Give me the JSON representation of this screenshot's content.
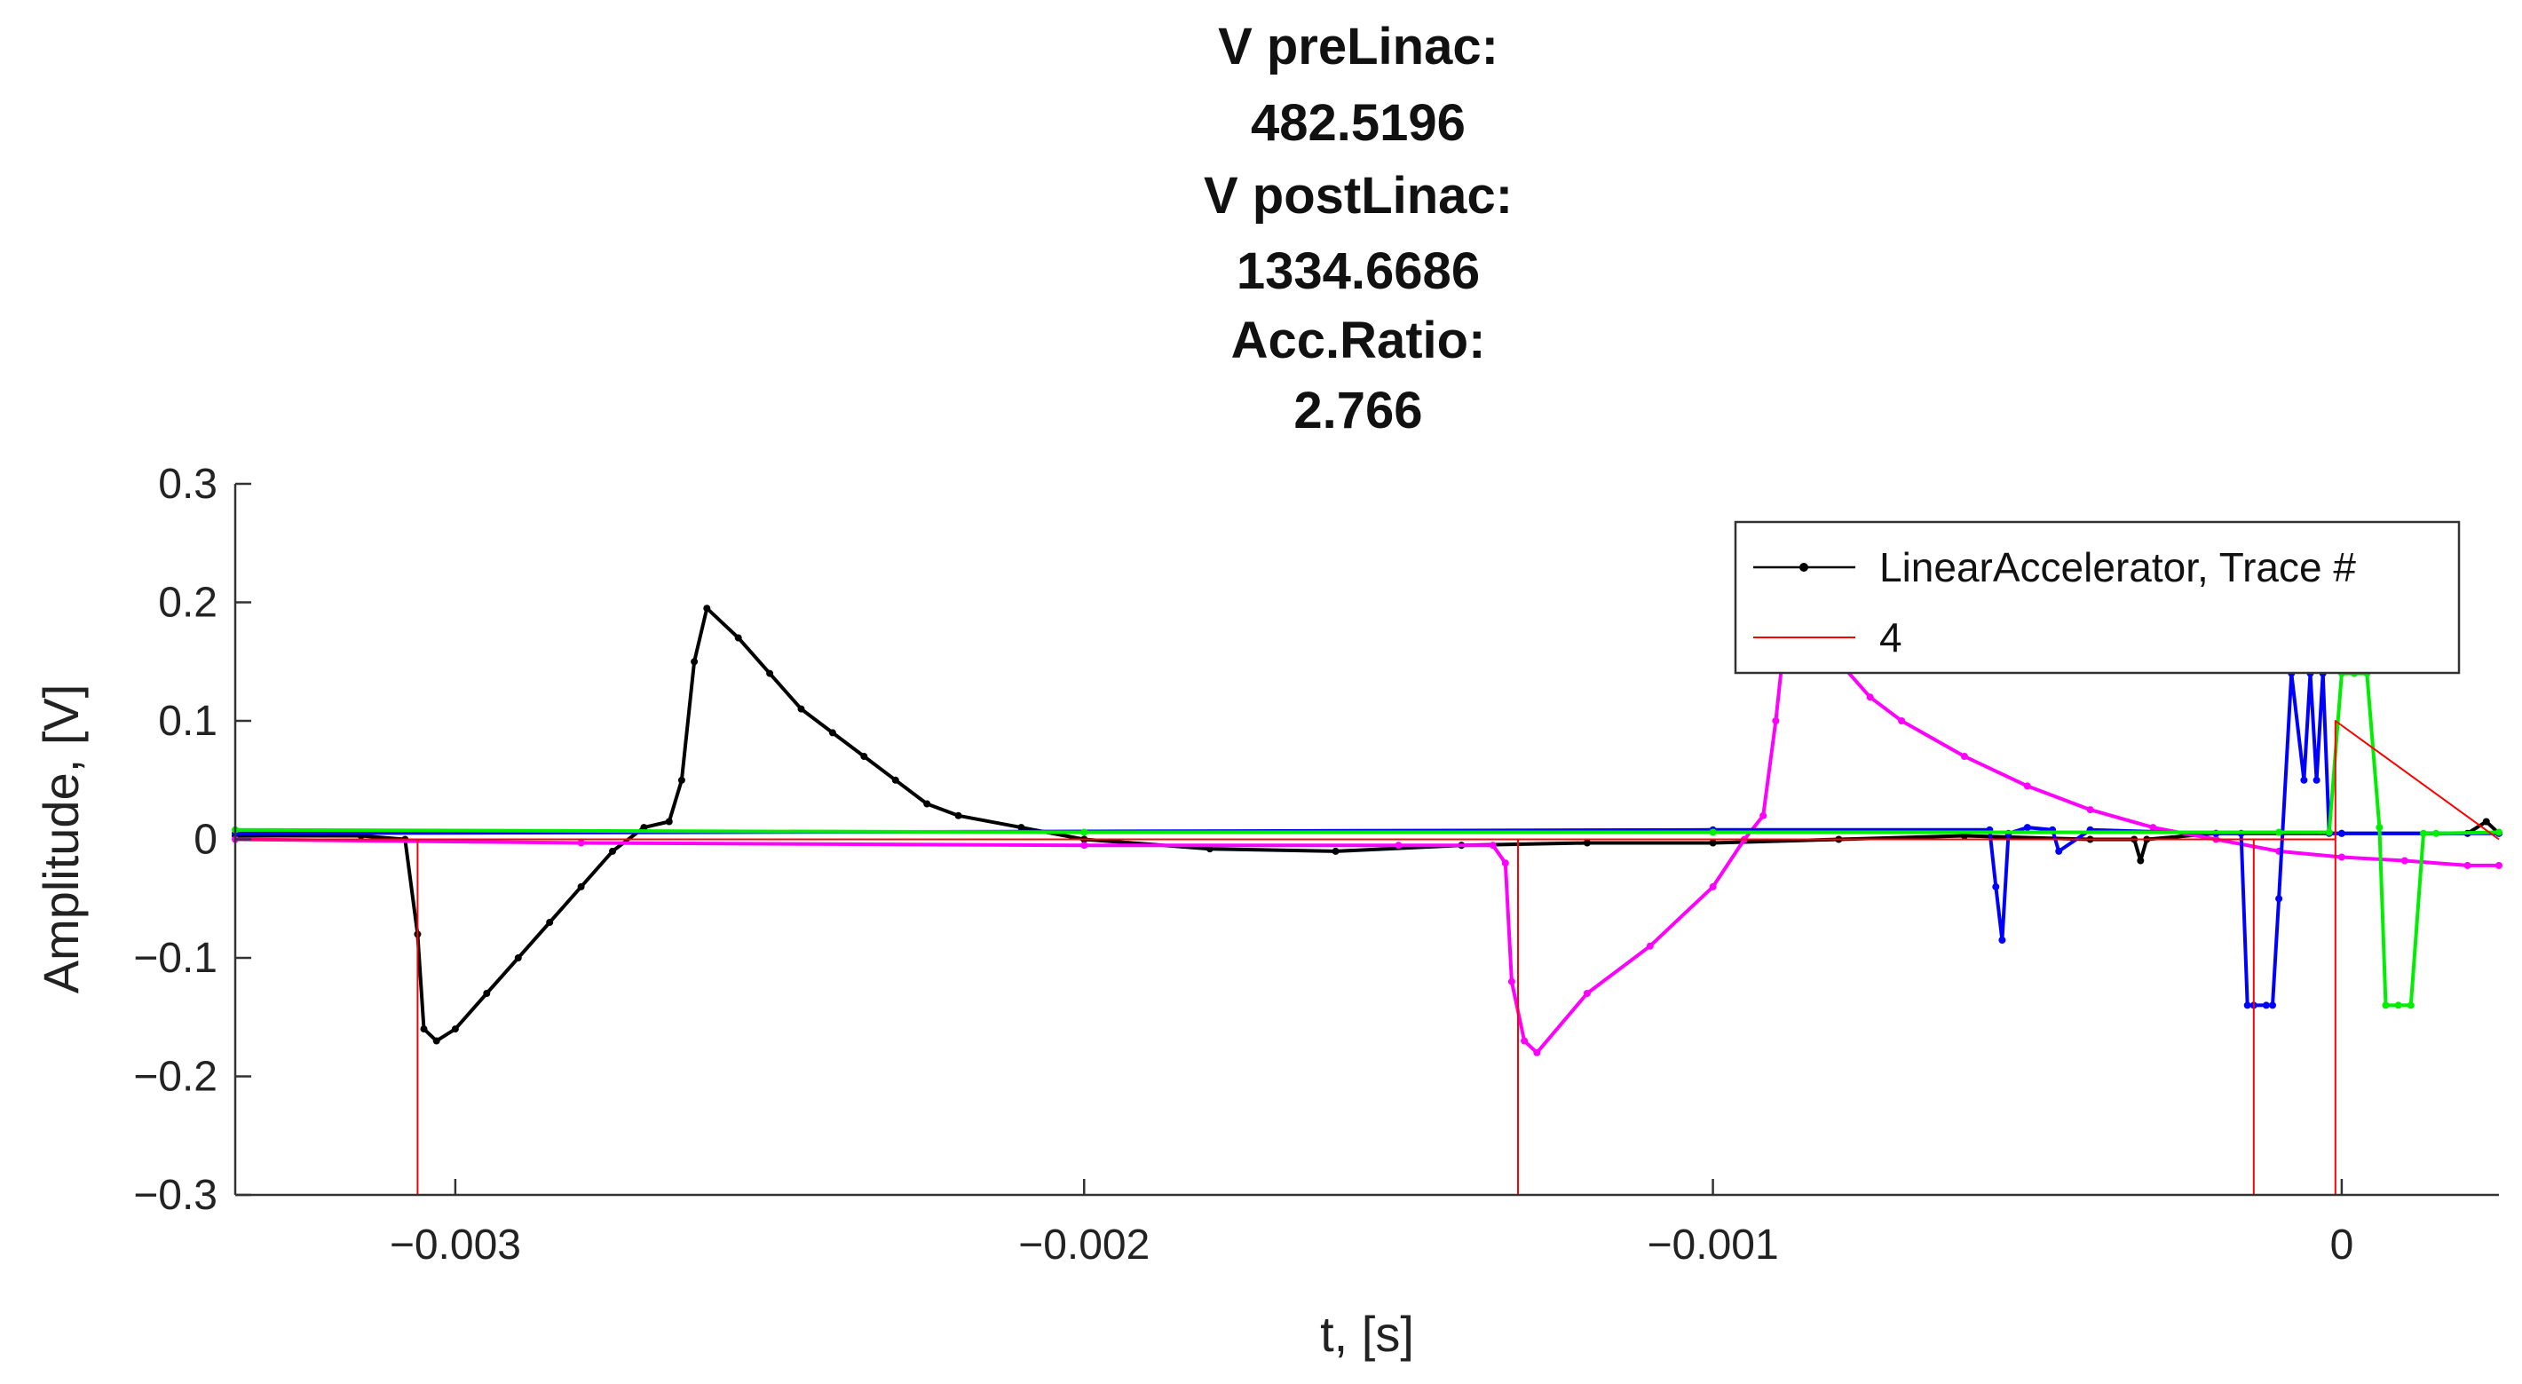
{
  "chart_data": {
    "type": "line",
    "title_lines": [
      "V preLinac:",
      "482.5196",
      "V postLinac:",
      "1334.6686",
      "Acc.Ratio:",
      "2.766"
    ],
    "xlabel": "t, [s]",
    "ylabel": "Amplitude, [V]",
    "xlim": [
      -0.00335,
      0.00025
    ],
    "ylim": [
      -0.3,
      0.3
    ],
    "xticks": [
      -0.003,
      -0.002,
      -0.001,
      0
    ],
    "xtick_labels": [
      "−0.003",
      "−0.002",
      "−0.001",
      "0"
    ],
    "yticks": [
      -0.3,
      -0.2,
      -0.1,
      0,
      0.1,
      0.2,
      0.3
    ],
    "ytick_labels": [
      "−0.3",
      "−0.2",
      "−0.1",
      "0",
      "0.1",
      "0.2",
      "0.3"
    ],
    "grid": false,
    "legend": {
      "placement": "top-right",
      "entries": [
        {
          "label": "LinearAccelerator, Trace #",
          "color": "#000000",
          "marker": true
        },
        {
          "label": "4",
          "color": "#ff0000",
          "marker": false
        }
      ]
    },
    "series": [
      {
        "color": "#000000",
        "x": [
          -0.00335,
          -0.00315,
          -0.00308,
          -0.00306,
          -0.00305,
          -0.00303,
          -0.003,
          -0.00295,
          -0.0029,
          -0.00285,
          -0.0028,
          -0.00275,
          -0.0027,
          -0.00266,
          -0.00264,
          -0.00262,
          -0.0026,
          -0.00255,
          -0.0025,
          -0.00245,
          -0.0024,
          -0.00235,
          -0.0023,
          -0.00225,
          -0.0022,
          -0.0021,
          -0.002,
          -0.0018,
          -0.0016,
          -0.0014,
          -0.0012,
          -0.001,
          -0.0008,
          -0.0006,
          -0.0004,
          -0.00033,
          -0.00032,
          -0.00031,
          -0.0002,
          0.0,
          0.0002,
          0.00023,
          0.00025
        ],
        "y": [
          0.003,
          0.003,
          0.0,
          -0.08,
          -0.16,
          -0.17,
          -0.16,
          -0.13,
          -0.1,
          -0.07,
          -0.04,
          -0.01,
          0.01,
          0.015,
          0.05,
          0.15,
          0.195,
          0.17,
          0.14,
          0.11,
          0.09,
          0.07,
          0.05,
          0.03,
          0.02,
          0.01,
          0.0,
          -0.008,
          -0.01,
          -0.005,
          -0.003,
          -0.003,
          0.0,
          0.003,
          0.0,
          0.0,
          -0.018,
          0.0,
          0.005,
          0.005,
          0.005,
          0.015,
          0.005
        ]
      },
      {
        "color": "#ff00ff",
        "x": [
          -0.00335,
          -0.0028,
          -0.002,
          -0.0015,
          -0.00135,
          -0.00133,
          -0.00132,
          -0.0013,
          -0.00128,
          -0.0012,
          -0.0011,
          -0.001,
          -0.00095,
          -0.00092,
          -0.0009,
          -0.00089,
          -0.0008,
          -0.00075,
          -0.0007,
          -0.0006,
          -0.0005,
          -0.0004,
          -0.0003,
          -0.0002,
          -0.0001,
          0.0,
          0.0001,
          0.0002,
          0.00025
        ],
        "y": [
          0.0,
          -0.003,
          -0.005,
          -0.005,
          -0.005,
          -0.02,
          -0.12,
          -0.17,
          -0.18,
          -0.13,
          -0.09,
          -0.04,
          0.0,
          0.02,
          0.1,
          0.15,
          0.15,
          0.12,
          0.1,
          0.07,
          0.045,
          0.025,
          0.01,
          0.0,
          -0.01,
          -0.015,
          -0.018,
          -0.022,
          -0.022
        ]
      },
      {
        "color": "#0000ff",
        "x": [
          -0.00335,
          -0.001,
          -0.00056,
          -0.00055,
          -0.00054,
          -0.00053,
          -0.0005,
          -0.00046,
          -0.00045,
          -0.0004,
          -0.0002,
          -0.00016,
          -0.00015,
          -0.00014,
          -0.00012,
          -0.00011,
          -0.0001,
          -8e-05,
          -6e-05,
          -5e-05,
          -4e-05,
          -3e-05,
          -2e-05,
          0.0,
          0.00025
        ],
        "y": [
          0.005,
          0.008,
          0.008,
          -0.04,
          -0.085,
          0.005,
          0.01,
          0.008,
          -0.01,
          0.008,
          0.005,
          0.005,
          -0.14,
          -0.14,
          -0.14,
          -0.14,
          -0.05,
          0.14,
          0.05,
          0.14,
          0.05,
          0.14,
          0.005,
          0.005,
          0.005
        ]
      },
      {
        "color": "#00ee00",
        "x": [
          -0.00335,
          -0.002,
          -0.001,
          -0.0001,
          -2e-05,
          0.0,
          2e-05,
          4e-05,
          6e-05,
          7e-05,
          9e-05,
          0.00011,
          0.00013,
          0.00015,
          0.00025
        ],
        "y": [
          0.008,
          0.006,
          0.006,
          0.006,
          0.006,
          0.14,
          0.14,
          0.14,
          0.01,
          -0.14,
          -0.14,
          -0.14,
          0.005,
          0.005,
          0.006
        ]
      },
      {
        "color": "#ff0000",
        "x": [
          -0.00335,
          -0.00306,
          -0.00306,
          -0.00306,
          -0.00131,
          -0.00131,
          -0.00131,
          -0.00014,
          -0.00014,
          -0.00014,
          -1e-05,
          -1e-05,
          -1e-05,
          0.00025
        ],
        "y": [
          0.0,
          0.0,
          -0.3,
          0.0,
          0.0,
          -0.3,
          0.0,
          0.0,
          -0.3,
          0.0,
          0.0,
          -0.3,
          0.1,
          0.0
        ]
      }
    ]
  }
}
